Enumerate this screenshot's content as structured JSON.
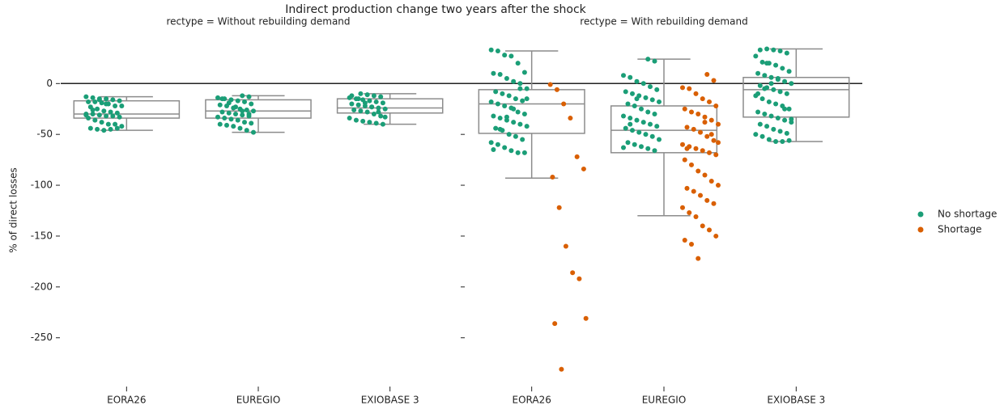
{
  "chart_data": {
    "type": "box",
    "title": "Indirect production change two years after the shock",
    "y_label": "% of direct losses",
    "ylim": [
      -290,
      40
    ],
    "yticks": [
      0,
      -50,
      -100,
      -150,
      -200,
      -250
    ],
    "reference_line": 0,
    "legend": "right",
    "legend_entries": [
      {
        "name": "No shortage",
        "color": "#1b9e77"
      },
      {
        "name": "Shortage",
        "color": "#d95f02"
      }
    ],
    "panels": [
      {
        "title": "rectype = Without rebuilding demand",
        "categories": [
          "EORA26",
          "EUREGIO",
          "EXIOBASE 3"
        ],
        "boxes": [
          {
            "whisker_high": -13,
            "q3": -17,
            "median": -30,
            "q1": -34,
            "whisker_low": -46
          },
          {
            "whisker_high": -12,
            "q3": -16,
            "median": -27,
            "q1": -34,
            "whisker_low": -48
          },
          {
            "whisker_high": -10,
            "q3": -15,
            "median": -24,
            "q1": -29,
            "whisker_low": -40
          }
        ],
        "series": [
          {
            "name": "No shortage",
            "color": "#1b9e77",
            "values": [
              [
                -13,
                -14,
                -15,
                -15,
                -16,
                -17,
                -18,
                -18,
                -19,
                -20,
                -22,
                -22,
                -23,
                -25,
                -27,
                -28,
                -29,
                -30,
                -30,
                -31,
                -32,
                -32,
                -33,
                -34,
                -36,
                -38,
                -40,
                -40,
                -42,
                -44,
                -45,
                -46,
                -45,
                -44,
                -31,
                -26,
                -16,
                -20
              ],
              [
                -12,
                -13,
                -14,
                -15,
                -16,
                -17,
                -18,
                -20,
                -21,
                -22,
                -24,
                -25,
                -26,
                -27,
                -28,
                -29,
                -30,
                -31,
                -32,
                -33,
                -34,
                -35,
                -36,
                -38,
                -39,
                -40,
                -41,
                -42,
                -44,
                -46,
                -48,
                -15,
                -19,
                -23,
                -27,
                -30
              ],
              [
                -10,
                -11,
                -12,
                -13,
                -14,
                -15,
                -16,
                -17,
                -18,
                -19,
                -20,
                -21,
                -22,
                -23,
                -24,
                -25,
                -26,
                -27,
                -28,
                -30,
                -32,
                -34,
                -36,
                -37,
                -38,
                -39,
                -40,
                -12,
                -15,
                -19,
                -23,
                -28,
                -33
              ]
            ]
          }
        ]
      },
      {
        "title": "rectype = With rebuilding demand",
        "categories": [
          "EORA26",
          "EUREGIO",
          "EXIOBASE 3"
        ],
        "boxes": [
          {
            "whisker_high": 32,
            "q3": -6,
            "median": -20,
            "q1": -49,
            "whisker_low": -93
          },
          {
            "whisker_high": 24,
            "q3": -22,
            "median": -46,
            "q1": -68,
            "whisker_low": -130
          },
          {
            "whisker_high": 34,
            "q3": 6,
            "median": -6,
            "q1": -33,
            "whisker_low": -57
          }
        ],
        "series": [
          {
            "name": "No shortage",
            "color": "#1b9e77",
            "values": [
              [
                33,
                32,
                28,
                27,
                20,
                11,
                10,
                9,
                5,
                2,
                0,
                -5,
                -8,
                -10,
                -12,
                -15,
                -17,
                -18,
                -20,
                -22,
                -24,
                -28,
                -30,
                -32,
                -34,
                -36,
                -38,
                -40,
                -42,
                -44,
                -46,
                -50,
                -52,
                -55,
                -58,
                -60,
                -63,
                -66,
                -68,
                -68,
                -65,
                -45,
                -33,
                -25,
                -5,
                -15
              ],
              [
                24,
                22,
                8,
                6,
                2,
                0,
                -3,
                -6,
                -8,
                -10,
                -12,
                -14,
                -16,
                -18,
                -20,
                -22,
                -25,
                -28,
                -30,
                -32,
                -34,
                -36,
                -38,
                -40,
                -42,
                -44,
                -46,
                -48,
                -50,
                -52,
                -55,
                -58,
                -60,
                -62,
                -64,
                -66,
                -63,
                -40,
                -15
              ],
              [
                34,
                33,
                32,
                30,
                27,
                21,
                20,
                18,
                15,
                12,
                10,
                8,
                6,
                4,
                2,
                0,
                -2,
                -4,
                -6,
                -8,
                -10,
                -12,
                -15,
                -18,
                -20,
                -22,
                -25,
                -28,
                -30,
                -32,
                -34,
                -36,
                -38,
                -40,
                -42,
                -45,
                -47,
                -49,
                -50,
                -52,
                -55,
                -57,
                -57,
                -56,
                -10,
                -5,
                0,
                5,
                -25,
                -35,
                33,
                20
              ]
            ]
          },
          {
            "name": "Shortage",
            "color": "#d95f02",
            "values": [
              [
                -1,
                -6,
                -20,
                -34,
                -72,
                -84,
                -92,
                -122,
                -160,
                -186,
                -192,
                -231,
                -236,
                -281
              ],
              [
                9,
                3,
                -4,
                -5,
                -10,
                -15,
                -18,
                -22,
                -25,
                -28,
                -30,
                -33,
                -36,
                -40,
                -43,
                -45,
                -48,
                -52,
                -56,
                -60,
                -62,
                -64,
                -66,
                -68,
                -70,
                -75,
                -80,
                -86,
                -90,
                -96,
                -100,
                -103,
                -106,
                -110,
                -115,
                -118,
                -122,
                -127,
                -131,
                -140,
                -144,
                -150,
                -154,
                -158,
                -172,
                -38,
                -50,
                -58,
                -64
              ],
              []
            ]
          }
        ]
      }
    ]
  }
}
